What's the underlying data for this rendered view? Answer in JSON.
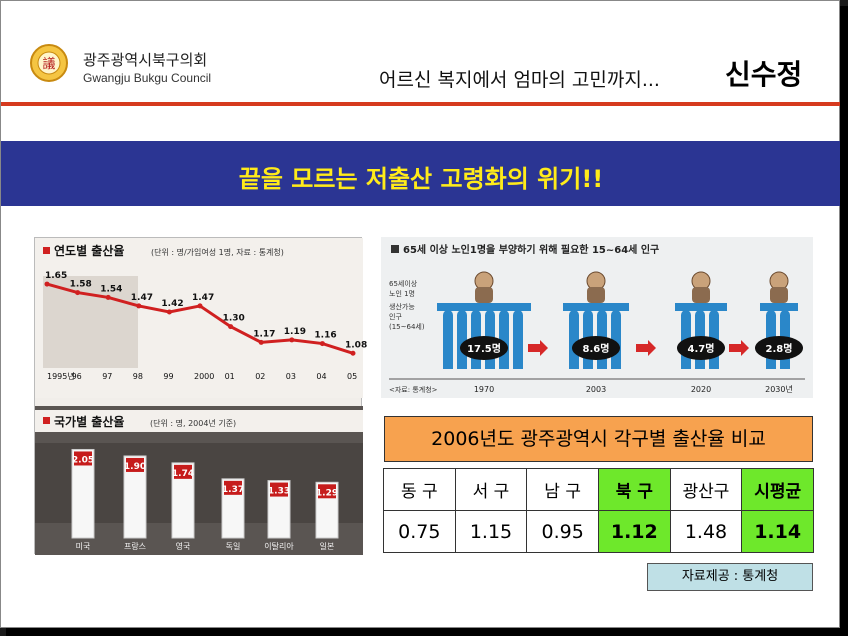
{
  "header": {
    "org_name_kr": "광주광역시북구의회",
    "org_name_en": "Gwangju Bukgu Council",
    "logo_char": "議",
    "subtitle": "어르신 복지에서 엄마의 고민까지...",
    "speaker": "신수정"
  },
  "banner": {
    "title": "끝을 모르는 저출산 고령화의 위기!!"
  },
  "chart_data": [
    {
      "type": "line",
      "title": "연도별 출산율",
      "note": "(단위 : 명/가임여성 1명, 자료 : 통계청)",
      "x": [
        "1995년",
        "96",
        "97",
        "98",
        "99",
        "2000",
        "01",
        "02",
        "03",
        "04",
        "05"
      ],
      "values": [
        1.65,
        1.58,
        1.54,
        1.47,
        1.42,
        1.47,
        1.3,
        1.17,
        1.19,
        1.16,
        1.08
      ],
      "value_labels": [
        "1.65",
        "1.58",
        "1.54",
        "1.47",
        "1.42",
        "1.47",
        "1.30",
        "1.17",
        "1.19",
        "1.16",
        "1.08"
      ],
      "ylim": [
        1.0,
        1.7
      ],
      "color": "#d02020"
    },
    {
      "type": "bar",
      "title": "국가별 출산율",
      "note": "(단위 : 명, 2004년 기준)",
      "categories": [
        "미국",
        "프랑스",
        "영국",
        "독일",
        "이탈리아",
        "일본"
      ],
      "values": [
        2.05,
        1.9,
        1.74,
        1.37,
        1.33,
        1.29
      ],
      "value_labels": [
        "2.05",
        "1.90",
        "1.74",
        "1.37",
        "1.33",
        "1.29"
      ],
      "ylim": [
        0,
        2.2
      ]
    },
    {
      "type": "bar",
      "title": "65세 이상 노인1명을 부양하기 위해 필요한 15~64세 인구",
      "legend_elder": "65세이상\n노인 1명",
      "legend_worker": "생산가능\n인구\n(15~64세)",
      "source": "<자료: 통계청>",
      "categories": [
        "1970",
        "2003",
        "2020",
        "2030년"
      ],
      "values": [
        17.5,
        8.6,
        4.7,
        2.8
      ],
      "value_labels": [
        "17.5명",
        "8.6명",
        "4.7명",
        "2.8명"
      ]
    },
    {
      "type": "table",
      "title": "2006년도 광주광역시 각구별 출산율 비교",
      "columns": [
        "동 구",
        "서 구",
        "남 구",
        "북 구",
        "광산구",
        "시평균"
      ],
      "values": [
        "0.75",
        "1.15",
        "0.95",
        "1.12",
        "1.48",
        "1.14"
      ],
      "highlight": [
        false,
        false,
        false,
        true,
        false,
        true
      ]
    }
  ],
  "source_box": "자료제공 : 통계청",
  "colors": {
    "banner": "#2b3593",
    "banner_text": "#ffeb1a",
    "rule": "#d63a1e",
    "highlight": "#6ee82b",
    "compare_title_bg": "#f7a24f"
  }
}
